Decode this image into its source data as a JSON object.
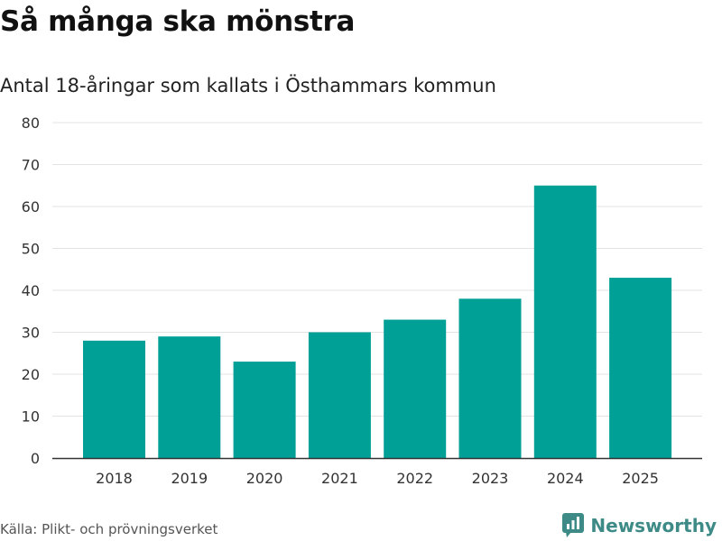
{
  "header": {
    "title": "Så många ska mönstra",
    "subtitle": "Antal 18-åringar som kallats i Östhammars kommun"
  },
  "footer": {
    "source": "Källa: Plikt- och prövningsverket",
    "brand": "Newsworthy",
    "brand_icon": "newsworthy-logo-icon",
    "brand_color": "#3d8a86"
  },
  "chart_data": {
    "type": "bar",
    "title": "Så många ska mönstra",
    "subtitle": "Antal 18-åringar som kallats i Östhammars kommun",
    "xlabel": "",
    "ylabel": "",
    "categories": [
      "2018",
      "2019",
      "2020",
      "2021",
      "2022",
      "2023",
      "2024",
      "2025"
    ],
    "values": [
      28,
      29,
      23,
      30,
      33,
      38,
      65,
      43
    ],
    "ylim": [
      0,
      80
    ],
    "yticks": [
      0,
      10,
      20,
      30,
      40,
      50,
      60,
      70,
      80
    ],
    "grid": true,
    "bar_color": "#00a096",
    "grid_color": "#e3e3e3",
    "axis_color": "#333333"
  }
}
